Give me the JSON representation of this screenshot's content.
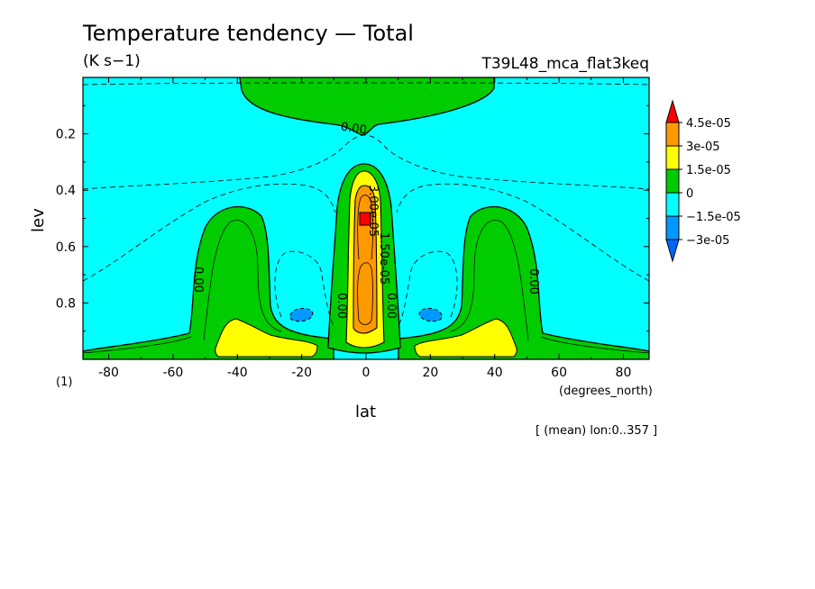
{
  "chart_data": {
    "type": "heatmap",
    "title": "Temperature tendency — Total",
    "units": "(K s−1)",
    "experiment": "T39L48_mca_flat3keq",
    "xlabel": "lat",
    "xunits": "(degrees_north)",
    "ylabel": "lev",
    "yunits": "(1)",
    "footnote": "[ (mean) lon:0..357 ]",
    "xlim": [
      -88,
      88
    ],
    "ylim": [
      1.0,
      0.0
    ],
    "xticks": [
      -80,
      -60,
      -40,
      -20,
      0,
      20,
      40,
      60,
      80
    ],
    "yticks": [
      0.2,
      0.4,
      0.6,
      0.8
    ],
    "colorbar": {
      "levels": [
        "4.5e-05",
        "3e-05",
        "1.5e-05",
        "0",
        "−1.5e-05",
        "−3e-05"
      ],
      "colors": [
        "#ff0000",
        "#ff9900",
        "#ffff00",
        "#00cc00",
        "#00ffff",
        "#0099ff",
        "#0066ff"
      ]
    },
    "contour_labels": [
      "0.00",
      "0.00",
      "0.00",
      "0.00",
      "0.00",
      "0.00",
      "1.50e-05",
      "3.00e-05"
    ]
  }
}
